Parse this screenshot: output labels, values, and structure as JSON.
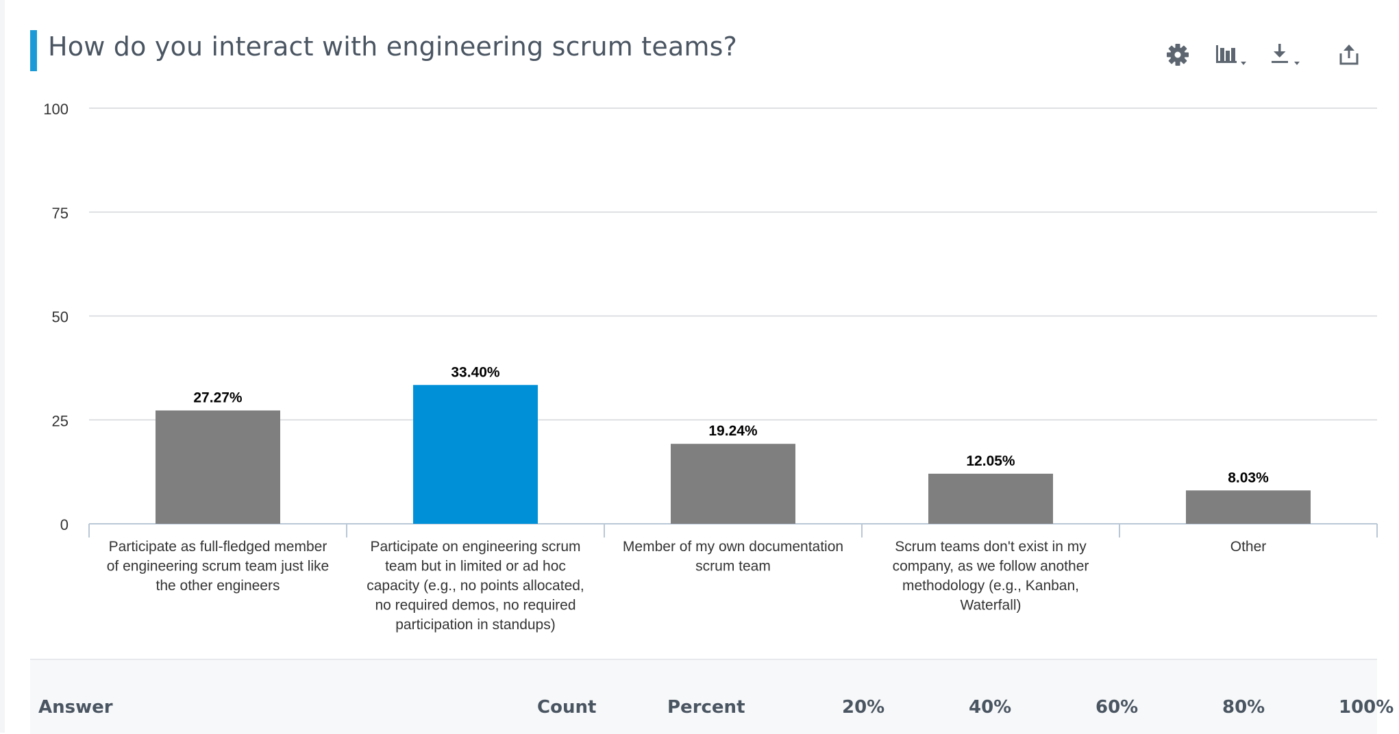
{
  "title": "How do you interact with engineering scrum teams?",
  "colors": {
    "accent": "#1a9bd7",
    "bar_default": "#7f7f7f",
    "bar_highlight": "#0090d8",
    "grid": "#d3d6da",
    "axis": "#b9c7d6",
    "label_text": "#333333",
    "value_text": "#000000",
    "icon": "#5d6670"
  },
  "toolbar": {
    "icons": [
      "gear-icon",
      "bar-chart-dropdown-icon",
      "download-dropdown-icon",
      "share-icon"
    ]
  },
  "chart_data": {
    "type": "bar",
    "title": "How do you interact with engineering scrum teams?",
    "categories": [
      "Participate as full-fledged member of engineering scrum team just like the other engineers",
      "Participate on engineering scrum team but in limited or ad hoc capacity (e.g., no points allocated, no required demos, no required participation in standups)",
      "Member of my own documentation scrum team",
      "Scrum teams don't exist in my company, as we follow another methodology (e.g., Kanban, Waterfall)",
      "Other"
    ],
    "category_lines": [
      [
        "Participate as full-fledged member",
        "of engineering scrum team just like",
        "the other engineers"
      ],
      [
        "Participate on engineering scrum",
        "team but in limited or ad hoc",
        "capacity (e.g., no points allocated,",
        "no required demos, no required",
        "participation in standups)"
      ],
      [
        "Member of my own documentation",
        "scrum team"
      ],
      [
        "Scrum teams don't exist in my",
        "company, as we follow another",
        "methodology (e.g., Kanban,",
        "Waterfall)"
      ],
      [
        "Other"
      ]
    ],
    "values": [
      27.27,
      33.4,
      19.24,
      12.05,
      8.03
    ],
    "value_labels": [
      "27.27%",
      "33.40%",
      "19.24%",
      "12.05%",
      "8.03%"
    ],
    "highlight_index": 1,
    "ylim": [
      0,
      100
    ],
    "yticks": [
      0,
      25,
      50,
      75,
      100
    ],
    "grid": true,
    "legend": "none"
  },
  "table": {
    "headers": [
      "Answer",
      "Count",
      "Percent",
      "20%",
      "40%",
      "60%",
      "80%",
      "100%"
    ]
  }
}
